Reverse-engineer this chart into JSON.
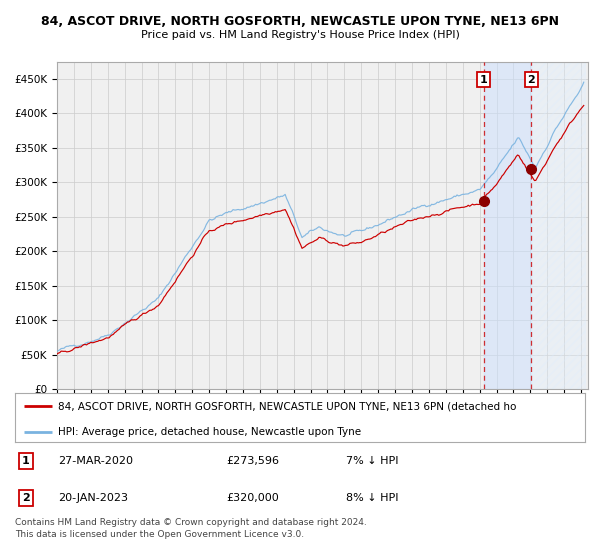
{
  "title1": "84, ASCOT DRIVE, NORTH GOSFORTH, NEWCASTLE UPON TYNE, NE13 6PN",
  "title2": "Price paid vs. HM Land Registry's House Price Index (HPI)",
  "hpi_color": "#7ab3e0",
  "price_color": "#cc0000",
  "marker_color": "#8b0000",
  "bg_color": "#ffffff",
  "plot_bg": "#f0f0f0",
  "sale1_price": 273596,
  "sale1_label": "27-MAR-2020",
  "sale2_price": 320000,
  "sale2_label": "20-JAN-2023",
  "sale1_hpi_text": "7% ↓ HPI",
  "sale2_hpi_text": "8% ↓ HPI",
  "legend1": "84, ASCOT DRIVE, NORTH GOSFORTH, NEWCASTLE UPON TYNE, NE13 6PN (detached ho",
  "legend2": "HPI: Average price, detached house, Newcastle upon Tyne",
  "copyright": "Contains HM Land Registry data © Crown copyright and database right 2024.\nThis data is licensed under the Open Government Licence v3.0.",
  "ylim": [
    0,
    475000
  ],
  "yticks": [
    0,
    50000,
    100000,
    150000,
    200000,
    250000,
    300000,
    350000,
    400000,
    450000
  ],
  "ytick_labels": [
    "£0",
    "£50K",
    "£100K",
    "£150K",
    "£200K",
    "£250K",
    "£300K",
    "£350K",
    "£400K",
    "£450K"
  ]
}
